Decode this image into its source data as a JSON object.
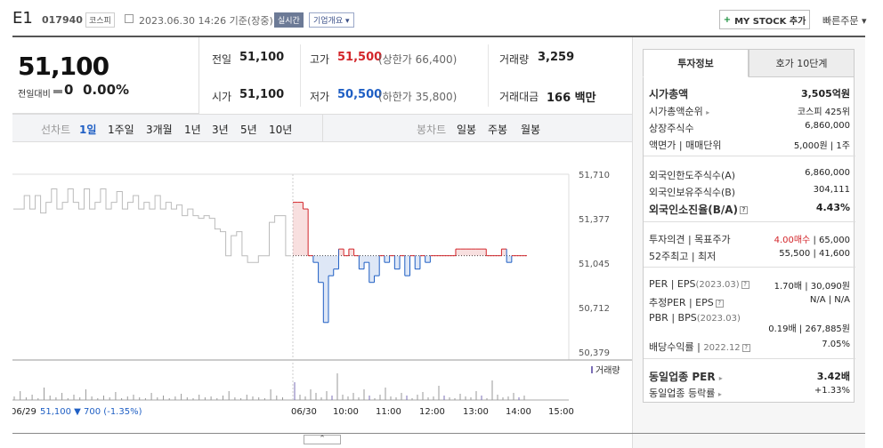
{
  "header": {
    "name": "E1",
    "code": "017940",
    "market": "코스피",
    "date": "2023.06.30 14:26 기준(장중)",
    "realtime_badge": "실시간",
    "corp_info": "기업개요",
    "mystock_label": "MY STOCK 추가",
    "quick_order": "빠른주문"
  },
  "summary": {
    "price": "51,100",
    "prev_label": "전일대비",
    "change": "0",
    "change_pct": "0.00%",
    "prev_close_label": "전일",
    "prev_close": "51,100",
    "high_label": "고가",
    "high": "51,500",
    "upper_limit": "(상한가 66,400)",
    "volume_label": "거래량",
    "volume": "3,259",
    "open_label": "시가",
    "open": "51,100",
    "low_label": "저가",
    "low": "50,500",
    "lower_limit": "(하한가 35,800)",
    "amount_label": "거래대금",
    "amount": "166 백만"
  },
  "period_tabs": {
    "line_label": "선차트",
    "line": [
      "1일",
      "1주일",
      "3개월",
      "1년",
      "3년",
      "5년",
      "10년"
    ],
    "candle_label": "봉차트",
    "candle": [
      "일봉",
      "주봉",
      "월봉"
    ]
  },
  "chart_data": {
    "type": "line",
    "y_ticks": [
      "51,710",
      "51,377",
      "51,045",
      "50,712",
      "50,379"
    ],
    "ylim": [
      50379,
      51710
    ],
    "x_ticks": [
      "06/29",
      "06/30",
      "10:00",
      "11:00",
      "12:00",
      "13:00",
      "14:00",
      "15:00"
    ],
    "reference_price": 51100,
    "volume_legend": "거래량",
    "prev_day_summary": "06/29  51,100 ▼ 700 (-1.35%)",
    "prev_day_series": [
      51450,
      51450,
      51550,
      51450,
      51550,
      51420,
      51500,
      51600,
      51450,
      51500,
      51600,
      51500,
      51450,
      51600,
      51450,
      51500,
      51600,
      51450,
      51500,
      51580,
      51450,
      51500,
      51550,
      51450,
      51500,
      51450,
      51550,
      51450,
      51500,
      51450,
      51480,
      51400,
      51450,
      51400,
      51380,
      51400,
      51380,
      51300,
      51280,
      51100,
      51250,
      51280,
      51100,
      51050,
      51050,
      51100,
      51100,
      51350,
      51400,
      51400,
      51100,
      51100
    ],
    "today_series": [
      51500,
      51500,
      51450,
      51100,
      51050,
      50900,
      50600,
      50950,
      51000,
      51150,
      51100,
      51150,
      51100,
      51000,
      51050,
      50900,
      50950,
      51100,
      51050,
      51100,
      51000,
      51100,
      50950,
      51100,
      51000,
      51100,
      51050,
      51100,
      51100,
      51100,
      51100,
      51100,
      51150,
      51150,
      51150,
      51150,
      51150,
      51150,
      51100,
      51100,
      51100,
      51150,
      51050,
      51100,
      51100,
      51100,
      51100
    ]
  },
  "invest_tabs": [
    "투자정보",
    "호가 10단계"
  ],
  "invest": {
    "market_cap_label": "시가총액",
    "market_cap": "3,505억원",
    "rank_label": "시가총액순위",
    "rank": "코스피 425위",
    "shares_label": "상장주식수",
    "shares": "6,860,000",
    "par_label": "액면가 | 매매단위",
    "par": "5,000원 | 1주",
    "foreign_limit_label": "외국인한도주식수(A)",
    "foreign_limit": "6,860,000",
    "foreign_hold_label": "외국인보유주식수(B)",
    "foreign_hold": "304,111",
    "foreign_ratio_label": "외국인소진율(B/A)",
    "foreign_ratio": "4.43%",
    "opinion_label": "투자의견 | 목표주가",
    "opinion": "4.00매수",
    "target": "65,000",
    "w52_label": "52주최고 | 최저",
    "w52": "55,500 | 41,600",
    "per_label": "PER | EPS",
    "per_period": "(2023.03)",
    "per": "1.70배 | 30,090원",
    "est_per_label": "추정PER | EPS",
    "est_per": "N/A | N/A",
    "pbr_label": "PBR | BPS",
    "pbr_period": "(2023.03)",
    "pbr": "0.19배 | 267,885원",
    "div_label": "배당수익률",
    "div_period": "2022.12",
    "div": "7.05%",
    "ind_per_label": "동일업종 PER",
    "ind_per": "3.42배",
    "ind_rate_label": "동일업종 등락률",
    "ind_rate": "+1.33%"
  },
  "colors": {
    "up": "#d3262b",
    "down": "#1f5fc4",
    "prev": "#bbbbbb"
  }
}
